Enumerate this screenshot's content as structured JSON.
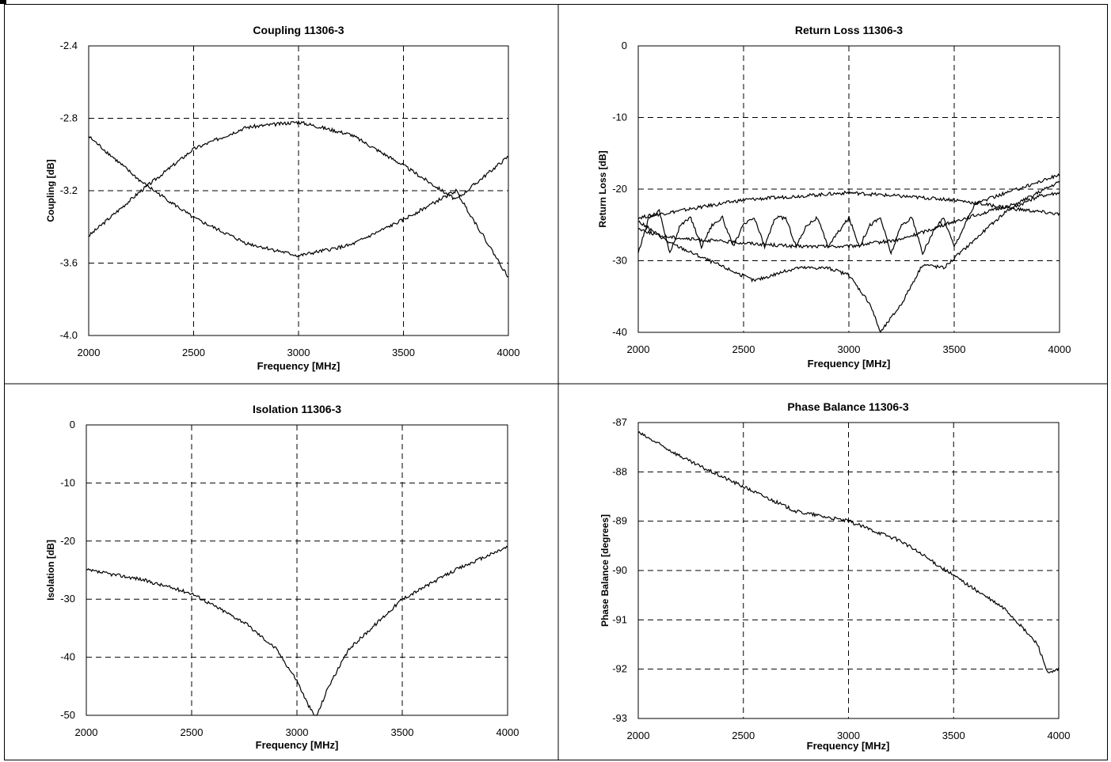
{
  "chart_data": [
    {
      "type": "line",
      "title": "Coupling 11306-3",
      "xlabel": "Frequency [MHz]",
      "ylabel": "Coupling [dB]",
      "xlim": [
        2000,
        4000
      ],
      "ylim": [
        -4.0,
        -2.4
      ],
      "xticks": [
        "2000",
        "2500",
        "3000",
        "3500",
        "4000"
      ],
      "yticks": [
        "-2.4",
        "-2.8",
        "-3.2",
        "-3.6",
        "-4.0"
      ],
      "grid": true,
      "series": [
        {
          "x": [
            2000,
            2250,
            2500,
            2750,
            3000,
            3250,
            3500,
            3750,
            4000
          ],
          "values": [
            -3.45,
            -3.2,
            -2.97,
            -2.85,
            -2.82,
            -2.89,
            -3.06,
            -3.25,
            -3.01
          ]
        },
        {
          "x": [
            2000,
            2250,
            2500,
            2750,
            3000,
            3250,
            3500,
            3750,
            4000
          ],
          "values": [
            -2.9,
            -3.15,
            -3.35,
            -3.49,
            -3.56,
            -3.5,
            -3.36,
            -3.2,
            -3.68
          ]
        }
      ]
    },
    {
      "type": "line",
      "title": "Return Loss 11306-3",
      "xlabel": "Frequency [MHz]",
      "ylabel": "Return Loss [dB]",
      "xlim": [
        2000,
        4000
      ],
      "ylim": [
        -40,
        0
      ],
      "xticks": [
        "2000",
        "2500",
        "3000",
        "3500",
        "4000"
      ],
      "yticks": [
        "0",
        "-10",
        "-20",
        "-30",
        "-40"
      ],
      "grid": true,
      "series": [
        {
          "x": [
            2000,
            2500,
            3000,
            3500,
            3800,
            4000
          ],
          "values": [
            -24,
            -21.5,
            -20.5,
            -21.5,
            -22.8,
            -23.5
          ]
        },
        {
          "x": [
            2000,
            2100,
            2250,
            2500,
            2750,
            3000,
            3250,
            3500,
            3800,
            4000
          ],
          "values": [
            -25.5,
            -26.5,
            -27,
            -27.5,
            -28,
            -28,
            -27,
            -24.5,
            -22,
            -19
          ]
        },
        {
          "x": [
            2000,
            2150,
            2300,
            2550,
            2750,
            2900,
            3000,
            3100,
            3150,
            3250,
            3350,
            3450,
            3600,
            3750,
            3900,
            4000
          ],
          "values": [
            -24.5,
            -27.5,
            -29.5,
            -32.8,
            -31,
            -31,
            -32,
            -36,
            -40,
            -36,
            -30.5,
            -31,
            -27,
            -23,
            -21,
            -20.5
          ]
        },
        {
          "x": [
            2000,
            2050,
            2100,
            2150,
            2200,
            2250,
            2300,
            2350,
            2400,
            2450,
            2500,
            2550,
            2600,
            2650,
            2700,
            2750,
            2800,
            2850,
            2900,
            2950,
            3000,
            3050,
            3100,
            3150,
            3200,
            3250,
            3300,
            3350,
            3400,
            3450,
            3500,
            3600,
            3800,
            4000
          ],
          "values": [
            -29,
            -24,
            -23,
            -29,
            -25,
            -24,
            -28,
            -25,
            -24,
            -28,
            -25,
            -24,
            -28,
            -24,
            -24,
            -28,
            -25,
            -24,
            -28,
            -26,
            -24,
            -28,
            -25,
            -24,
            -29,
            -25,
            -24,
            -29,
            -26,
            -24,
            -28,
            -22,
            -20,
            -18
          ]
        }
      ]
    },
    {
      "type": "line",
      "title": "Isolation 11306-3",
      "xlabel": "Frequency [MHz]",
      "ylabel": "Isolation [dB]",
      "xlim": [
        2000,
        4000
      ],
      "ylim": [
        -50,
        0
      ],
      "xticks": [
        "2000",
        "2500",
        "3000",
        "3500",
        "4000"
      ],
      "yticks": [
        "0",
        "-10",
        "-20",
        "-30",
        "-40",
        "-50"
      ],
      "grid": true,
      "series": [
        {
          "x": [
            2000,
            2250,
            2500,
            2750,
            2900,
            3000,
            3050,
            3090,
            3150,
            3250,
            3500,
            3750,
            4000
          ],
          "values": [
            -25,
            -26.5,
            -29,
            -34,
            -38.5,
            -44,
            -48,
            -50.5,
            -45,
            -38.5,
            -30,
            -25,
            -21
          ]
        }
      ]
    },
    {
      "type": "line",
      "title": "Phase Balance 11306-3",
      "xlabel": "Frequency [MHz]",
      "ylabel": "Phase  Balance [degrees]",
      "xlim": [
        2000,
        4000
      ],
      "ylim": [
        -93,
        -87
      ],
      "xticks": [
        "2000",
        "2500",
        "3000",
        "3500",
        "4000"
      ],
      "yticks": [
        "-87",
        "-88",
        "-89",
        "-90",
        "-91",
        "-92",
        "-93"
      ],
      "grid": true,
      "series": [
        {
          "x": [
            2000,
            2250,
            2500,
            2750,
            3000,
            3250,
            3500,
            3750,
            3900,
            3950,
            4000
          ],
          "values": [
            -87.2,
            -87.8,
            -88.3,
            -88.8,
            -89.0,
            -89.4,
            -90.1,
            -90.8,
            -91.5,
            -92.1,
            -92.0
          ]
        }
      ]
    }
  ]
}
